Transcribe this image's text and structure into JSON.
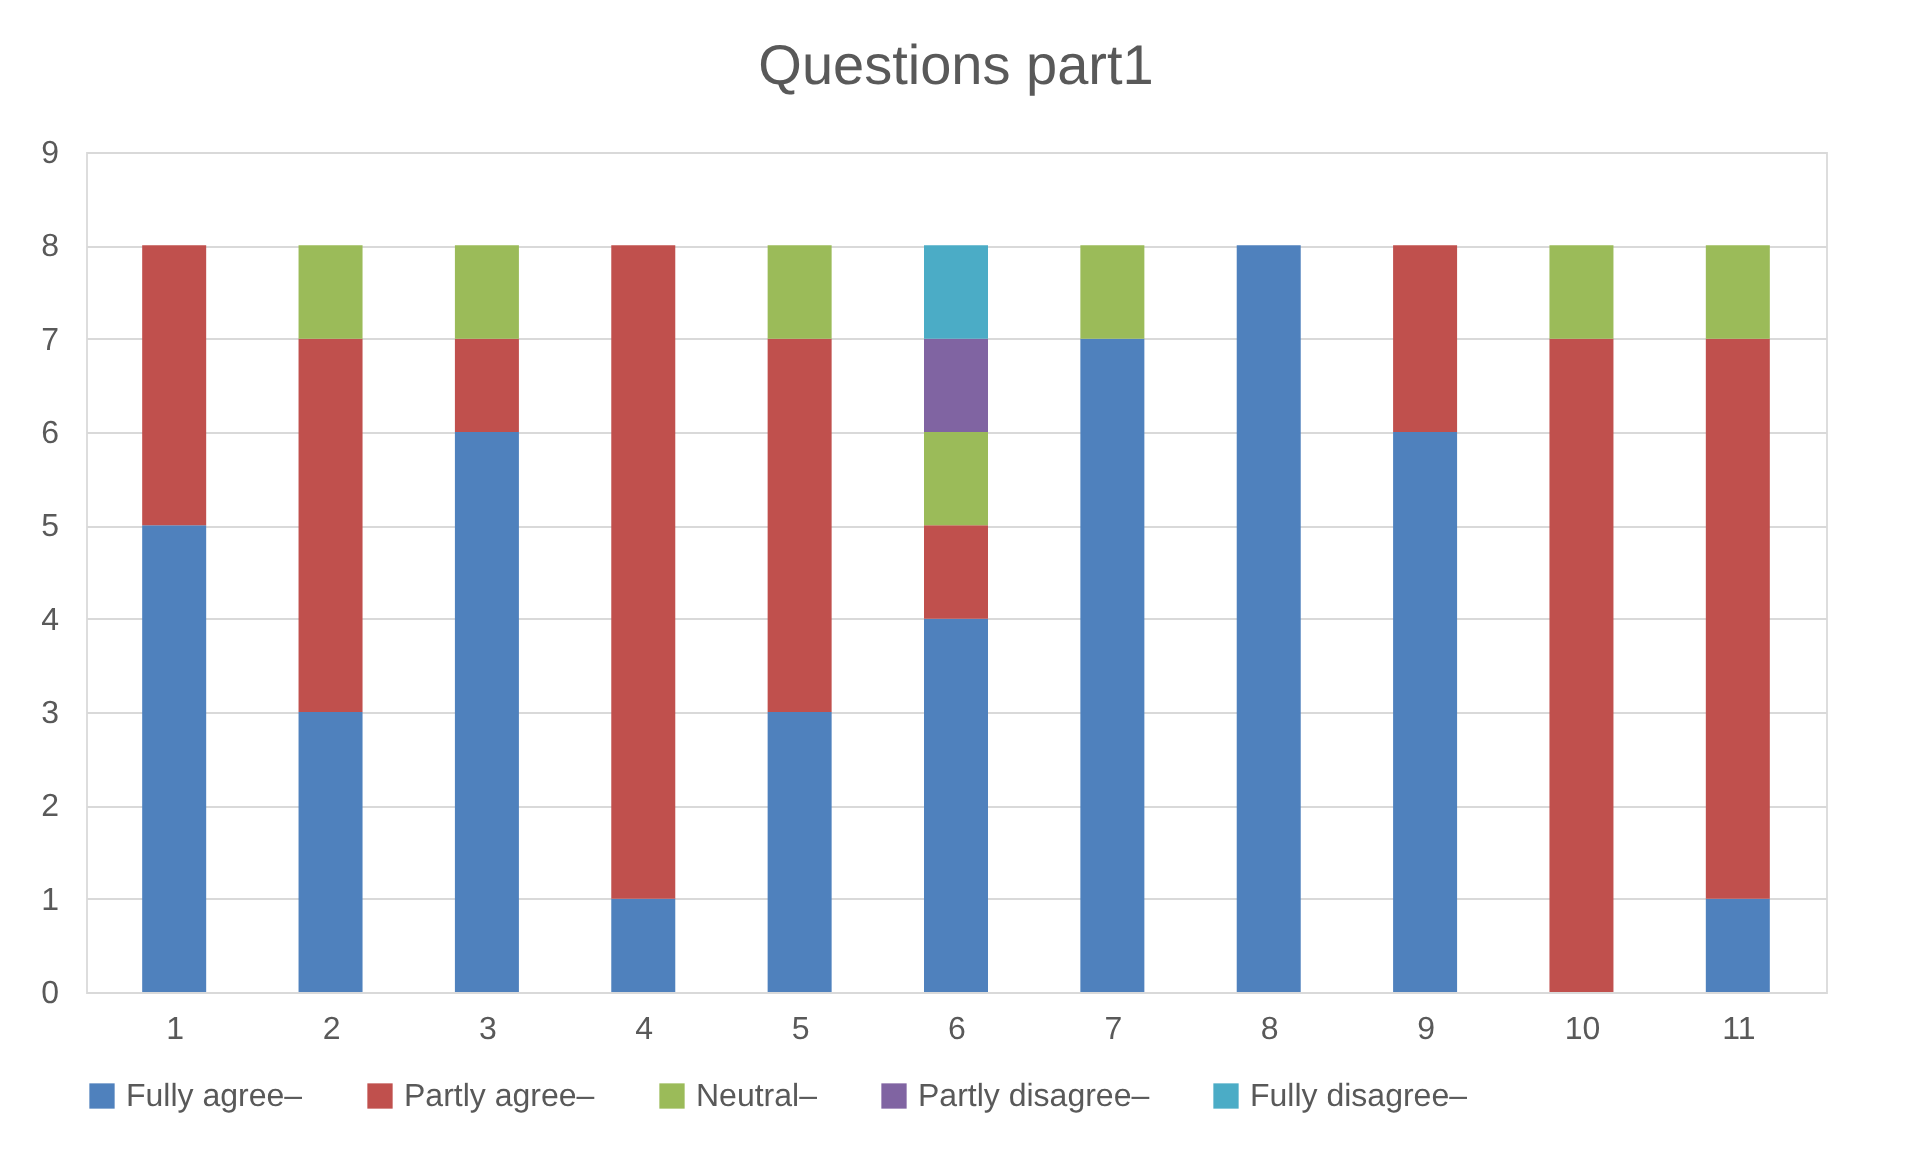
{
  "chart_data": {
    "type": "bar",
    "title": "Questions part1",
    "stacked": true,
    "categories": [
      "1",
      "2",
      "3",
      "4",
      "5",
      "6",
      "7",
      "8",
      "9",
      "10",
      "11"
    ],
    "series": [
      {
        "name": "Fully agree–",
        "color": "#4f81bd",
        "values": [
          5,
          3,
          6,
          1,
          3,
          4,
          7,
          8,
          6,
          0,
          1
        ]
      },
      {
        "name": "Partly agree–",
        "color": "#c0504d",
        "values": [
          3,
          4,
          1,
          7,
          4,
          1,
          0,
          0,
          2,
          7,
          6
        ]
      },
      {
        "name": "Neutral–",
        "color": "#9bbb59",
        "values": [
          0,
          1,
          1,
          0,
          1,
          1,
          1,
          0,
          0,
          1,
          1
        ]
      },
      {
        "name": "Partly disagree–",
        "color": "#8064a2",
        "values": [
          0,
          0,
          0,
          0,
          0,
          1,
          0,
          0,
          0,
          0,
          0
        ]
      },
      {
        "name": "Fully disagree–",
        "color": "#4bacc6",
        "values": [
          0,
          0,
          0,
          0,
          0,
          1,
          0,
          0,
          0,
          0,
          0
        ]
      }
    ],
    "ylim": [
      0,
      9
    ],
    "yticks": [
      0,
      1,
      2,
      3,
      4,
      5,
      6,
      7,
      8,
      9
    ],
    "grid": "y",
    "legend": "bottom"
  }
}
